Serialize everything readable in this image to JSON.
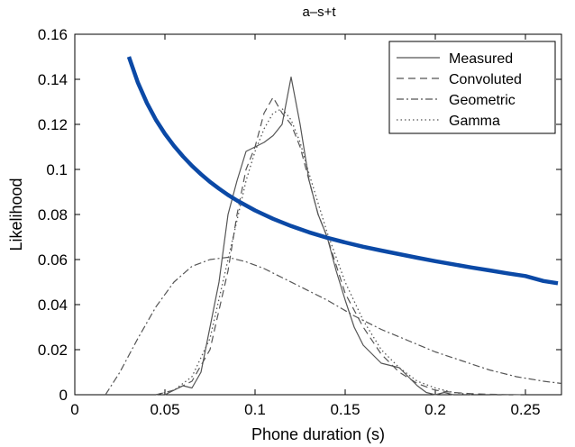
{
  "chart_data": {
    "type": "line",
    "title": "a–s+t",
    "xlabel": "Phone duration (s)",
    "ylabel": "Likelihood",
    "xlim": [
      0,
      0.27
    ],
    "ylim": [
      0,
      0.16
    ],
    "xticks": [
      0,
      0.05,
      0.1,
      0.15,
      0.2,
      0.25
    ],
    "xtick_labels": [
      "0",
      "0.05",
      "0.1",
      "0.15",
      "0.2",
      "0.25"
    ],
    "yticks": [
      0,
      0.02,
      0.04,
      0.06,
      0.08,
      0.1,
      0.12,
      0.14,
      0.16
    ],
    "ytick_labels": [
      "0",
      "0.02",
      "0.04",
      "0.06",
      "0.08",
      "0.1",
      "0.12",
      "0.14",
      "0.16"
    ],
    "grid": false,
    "legend_position": "top-right",
    "series": [
      {
        "name": "Measured",
        "style": "solid",
        "color": "#555555",
        "x": [
          0.05,
          0.055,
          0.06,
          0.065,
          0.07,
          0.075,
          0.08,
          0.085,
          0.09,
          0.095,
          0.1,
          0.105,
          0.11,
          0.115,
          0.12,
          0.125,
          0.13,
          0.135,
          0.14,
          0.145,
          0.15,
          0.155,
          0.16,
          0.165,
          0.17,
          0.175,
          0.18,
          0.185,
          0.19,
          0.195,
          0.2,
          0.205,
          0.21
        ],
        "values": [
          0.0,
          0.002,
          0.004,
          0.003,
          0.01,
          0.03,
          0.05,
          0.08,
          0.095,
          0.108,
          0.11,
          0.112,
          0.115,
          0.12,
          0.141,
          0.12,
          0.095,
          0.08,
          0.07,
          0.055,
          0.042,
          0.03,
          0.022,
          0.018,
          0.014,
          0.013,
          0.012,
          0.008,
          0.004,
          0.001,
          0.0,
          0.001,
          0.0
        ]
      },
      {
        "name": "Convoluted",
        "style": "dashed",
        "color": "#555555",
        "x": [
          0.045,
          0.055,
          0.065,
          0.075,
          0.085,
          0.09,
          0.095,
          0.1,
          0.105,
          0.11,
          0.115,
          0.12,
          0.125,
          0.13,
          0.135,
          0.14,
          0.15,
          0.16,
          0.17,
          0.18,
          0.19,
          0.2,
          0.21,
          0.22,
          0.23,
          0.24,
          0.25
        ],
        "values": [
          0.0,
          0.002,
          0.006,
          0.02,
          0.055,
          0.08,
          0.1,
          0.11,
          0.125,
          0.132,
          0.125,
          0.12,
          0.11,
          0.095,
          0.08,
          0.07,
          0.045,
          0.03,
          0.018,
          0.01,
          0.005,
          0.002,
          0.001,
          0.0005,
          0.0002,
          0.0001,
          0.0
        ]
      },
      {
        "name": "Geometric",
        "style": "dash-dot",
        "color": "#555555",
        "x": [
          0.017,
          0.025,
          0.035,
          0.045,
          0.055,
          0.065,
          0.075,
          0.085,
          0.095,
          0.105,
          0.115,
          0.125,
          0.14,
          0.155,
          0.17,
          0.185,
          0.2,
          0.215,
          0.23,
          0.245,
          0.26,
          0.27
        ],
        "values": [
          0.0,
          0.01,
          0.025,
          0.039,
          0.05,
          0.057,
          0.06,
          0.061,
          0.059,
          0.056,
          0.052,
          0.048,
          0.042,
          0.035,
          0.029,
          0.024,
          0.019,
          0.015,
          0.011,
          0.008,
          0.006,
          0.005
        ]
      },
      {
        "name": "Gamma",
        "style": "dotted",
        "color": "#555555",
        "x": [
          0.045,
          0.055,
          0.065,
          0.075,
          0.085,
          0.095,
          0.1,
          0.105,
          0.11,
          0.115,
          0.12,
          0.125,
          0.13,
          0.135,
          0.14,
          0.15,
          0.16,
          0.17,
          0.18,
          0.19,
          0.2,
          0.21,
          0.22
        ],
        "values": [
          0.0,
          0.002,
          0.008,
          0.025,
          0.06,
          0.095,
          0.108,
          0.118,
          0.125,
          0.127,
          0.122,
          0.112,
          0.098,
          0.085,
          0.072,
          0.05,
          0.033,
          0.02,
          0.012,
          0.006,
          0.003,
          0.001,
          0.0
        ]
      },
      {
        "style": "solid-thick",
        "color": "#0b49a6",
        "x": [
          0.03,
          0.035,
          0.04,
          0.045,
          0.05,
          0.055,
          0.06,
          0.065,
          0.07,
          0.075,
          0.08,
          0.085,
          0.09,
          0.1,
          0.11,
          0.12,
          0.13,
          0.14,
          0.15,
          0.16,
          0.17,
          0.18,
          0.19,
          0.2,
          0.21,
          0.22,
          0.23,
          0.24,
          0.25,
          0.26,
          0.268
        ],
        "values": [
          0.15,
          0.1385,
          0.1295,
          0.122,
          0.1158,
          0.1105,
          0.1058,
          0.1016,
          0.0979,
          0.0945,
          0.0915,
          0.0887,
          0.0862,
          0.0818,
          0.0781,
          0.0749,
          0.0721,
          0.0697,
          0.0676,
          0.0657,
          0.064,
          0.0624,
          0.0608,
          0.0593,
          0.0579,
          0.0565,
          0.0552,
          0.0539,
          0.0527,
          0.0505,
          0.0495
        ]
      }
    ]
  }
}
